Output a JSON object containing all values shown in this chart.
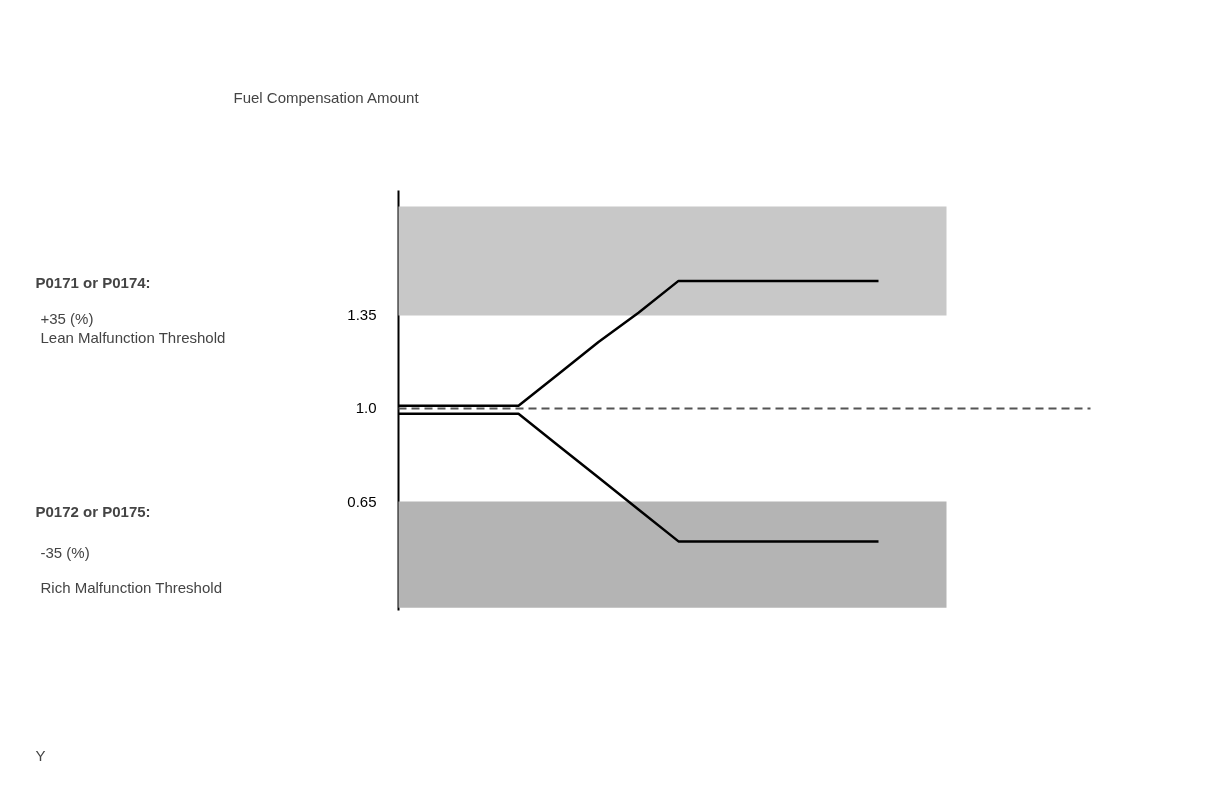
{
  "chart_data": {
    "type": "line",
    "title": "Fuel Compensation Amount",
    "annotations": [
      "P0171 or P0174:",
      "+35 (%)",
      "Lean Malfunction Threshold",
      "P0172 or P0175:",
      "-35 (%)",
      "Rich Malfunction Threshold",
      "Y"
    ],
    "categories": [
      null,
      null,
      null,
      null,
      null,
      null,
      null,
      null,
      null,
      null,
      null,
      null,
      null
    ],
    "series": [
      {
        "color": "#000000",
        "values": [
          1.01,
          1.01,
          1.01,
          1.01,
          1.13,
          1.25,
          1.36,
          1.48,
          1.48,
          1.48,
          1.48,
          1.48,
          1.48
        ]
      },
      {
        "color": "#000000",
        "values": [
          0.98,
          0.98,
          0.98,
          0.98,
          0.86,
          0.74,
          0.62,
          0.5,
          0.5,
          0.5,
          0.5,
          0.5,
          0.5
        ]
      }
    ],
    "ylim": [
      0.24,
      1.82
    ],
    "yticks": [
      0.65,
      {
        "value": 1.0,
        "label": "1.0"
      },
      1.35
    ],
    "ref_lines": [
      {
        "axis": "y",
        "value": 1.0,
        "color": "#555555",
        "line_style": "dashed"
      }
    ],
    "bands": [
      {
        "axis": "y",
        "from": 1.35,
        "to": 1.76,
        "color": "#c8c8c8"
      },
      {
        "axis": "y",
        "from": 0.25,
        "to": 0.65,
        "color": "#b4b4b4"
      }
    ],
    "tick_labels": "y",
    "grid": false,
    "line_style": "solid",
    "marker": "none"
  }
}
